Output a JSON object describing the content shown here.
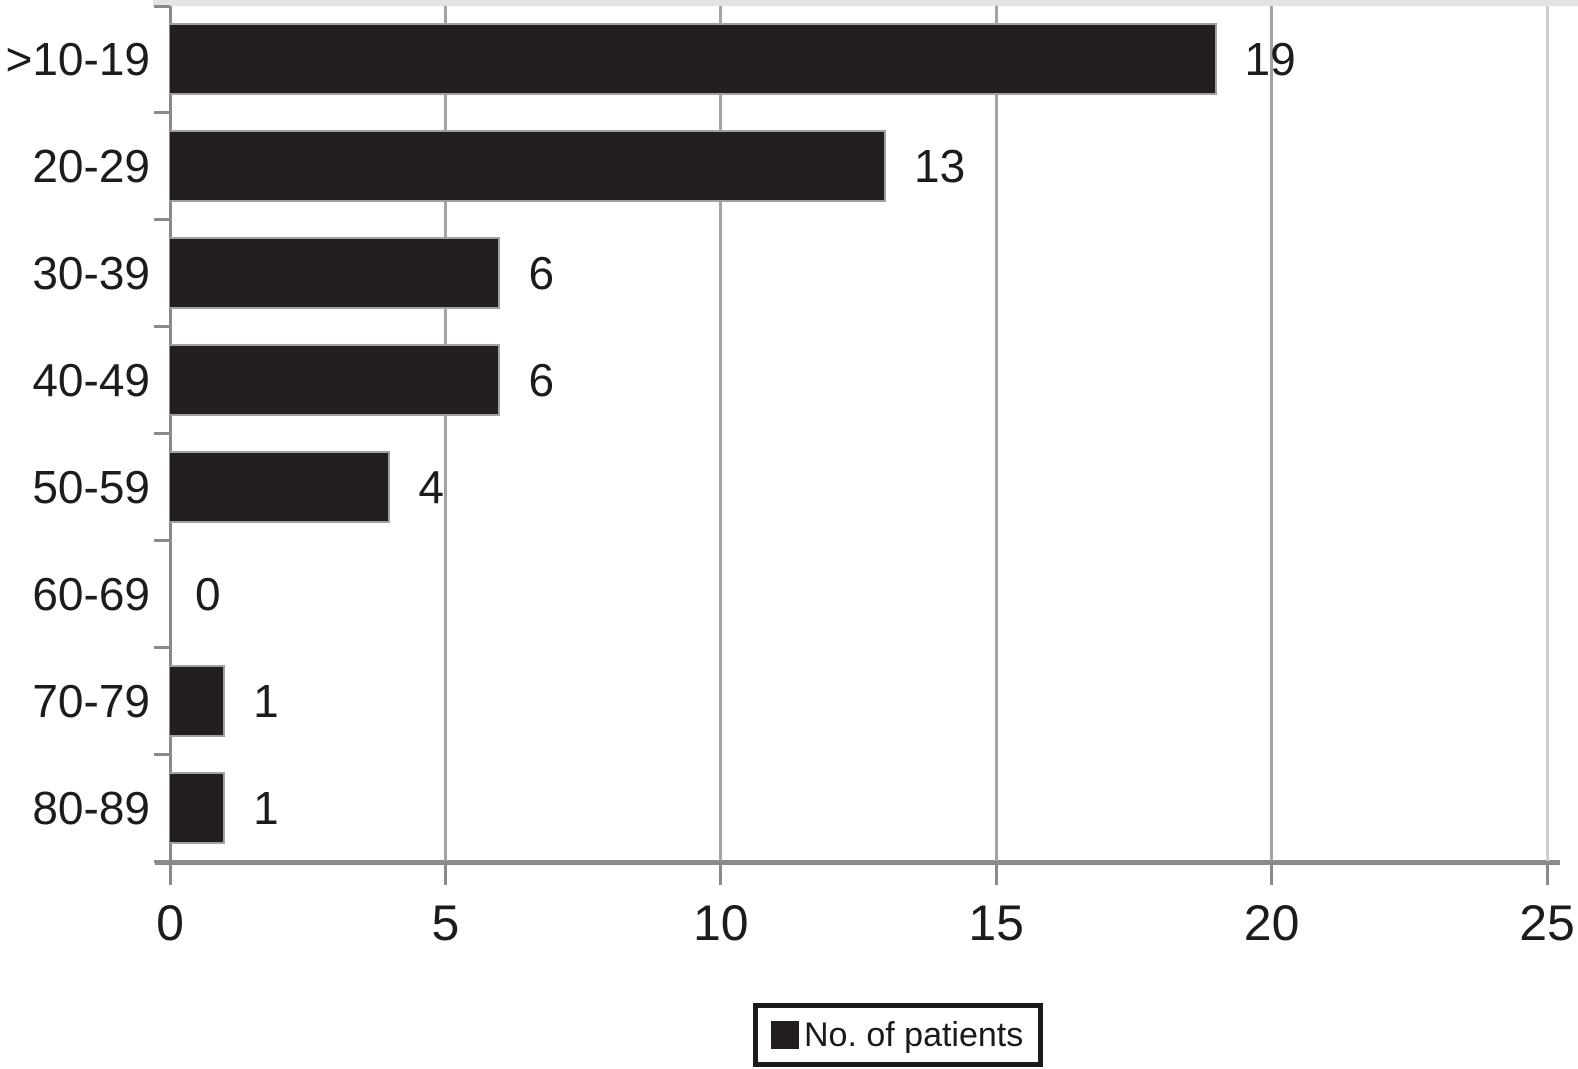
{
  "chart_data": {
    "type": "bar",
    "orientation": "horizontal",
    "title": "",
    "xlabel": "",
    "ylabel": "",
    "categories": [
      ">10-19",
      "20-29",
      "30-39",
      "40-49",
      "50-59",
      "60-69",
      "70-79",
      "80-89"
    ],
    "series": [
      {
        "name": "No. of patients",
        "values": [
          19,
          13,
          6,
          6,
          4,
          0,
          1,
          1
        ]
      }
    ],
    "data_labels": [
      19,
      13,
      6,
      6,
      4,
      0,
      1,
      1
    ],
    "xlim": [
      0,
      25
    ],
    "x_ticks": [
      0,
      5,
      10,
      15,
      20,
      25
    ],
    "grid": true,
    "legend_position": "bottom-center"
  },
  "legend": {
    "label": "No. of patients"
  },
  "colors": {
    "bar": "#231f20",
    "gridline": "#a3a3a3",
    "axis": "#8a8a8a",
    "text": "#1c1c1c",
    "background": "#ffffff"
  }
}
